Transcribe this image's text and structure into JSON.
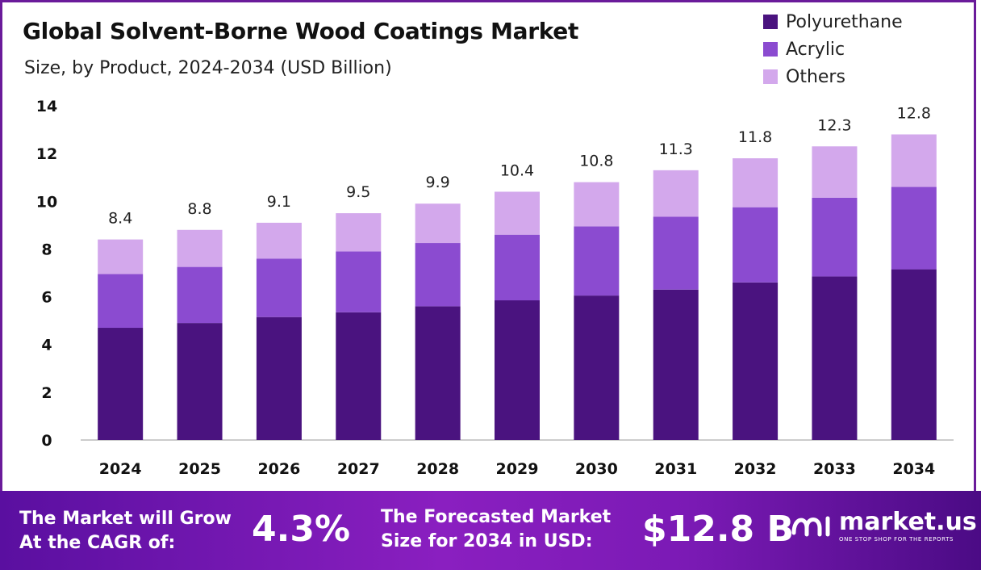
{
  "header": {
    "title": "Global Solvent-Borne Wood Coatings Market",
    "subtitle": "Size, by Product, 2024-2034 (USD Billion)"
  },
  "colors": {
    "polyurethane": "#4a137f",
    "acrylic": "#8b4bd0",
    "others": "#d3a8ec",
    "axis": "#bbbbbb"
  },
  "chart_data": {
    "type": "bar",
    "stacked": true,
    "categories": [
      "2024",
      "2025",
      "2026",
      "2027",
      "2028",
      "2029",
      "2030",
      "2031",
      "2032",
      "2033",
      "2034"
    ],
    "series": [
      {
        "name": "Polyurethane",
        "values": [
          4.7,
          4.9,
          5.15,
          5.35,
          5.6,
          5.85,
          6.05,
          6.3,
          6.6,
          6.85,
          7.15
        ]
      },
      {
        "name": "Acrylic",
        "values": [
          2.25,
          2.35,
          2.45,
          2.55,
          2.65,
          2.75,
          2.9,
          3.05,
          3.15,
          3.3,
          3.45
        ]
      },
      {
        "name": "Others",
        "values": [
          1.45,
          1.55,
          1.5,
          1.6,
          1.65,
          1.8,
          1.85,
          1.95,
          2.05,
          2.15,
          2.2
        ]
      }
    ],
    "totals": [
      "8.4",
      "8.8",
      "9.1",
      "9.5",
      "9.9",
      "10.4",
      "10.8",
      "11.3",
      "11.8",
      "12.3",
      "12.8"
    ],
    "yticks": [
      0,
      2,
      4,
      6,
      8,
      10,
      12,
      14
    ],
    "ylim": [
      0,
      14
    ],
    "title": "Global Solvent-Borne Wood Coatings Market",
    "subtitle": "Size, by Product, 2024-2034 (USD Billion)",
    "legend_position": "top-right"
  },
  "footer": {
    "cagr_label_line1": "The Market will Grow",
    "cagr_label_line2": "At the CAGR of:",
    "cagr_value": "4.3%",
    "forecast_label_line1": "The Forecasted Market",
    "forecast_label_line2": "Size for 2034 in USD:",
    "forecast_value": "$12.8 B",
    "brand_name": "market.us",
    "brand_tagline": "ONE STOP SHOP FOR THE REPORTS"
  }
}
